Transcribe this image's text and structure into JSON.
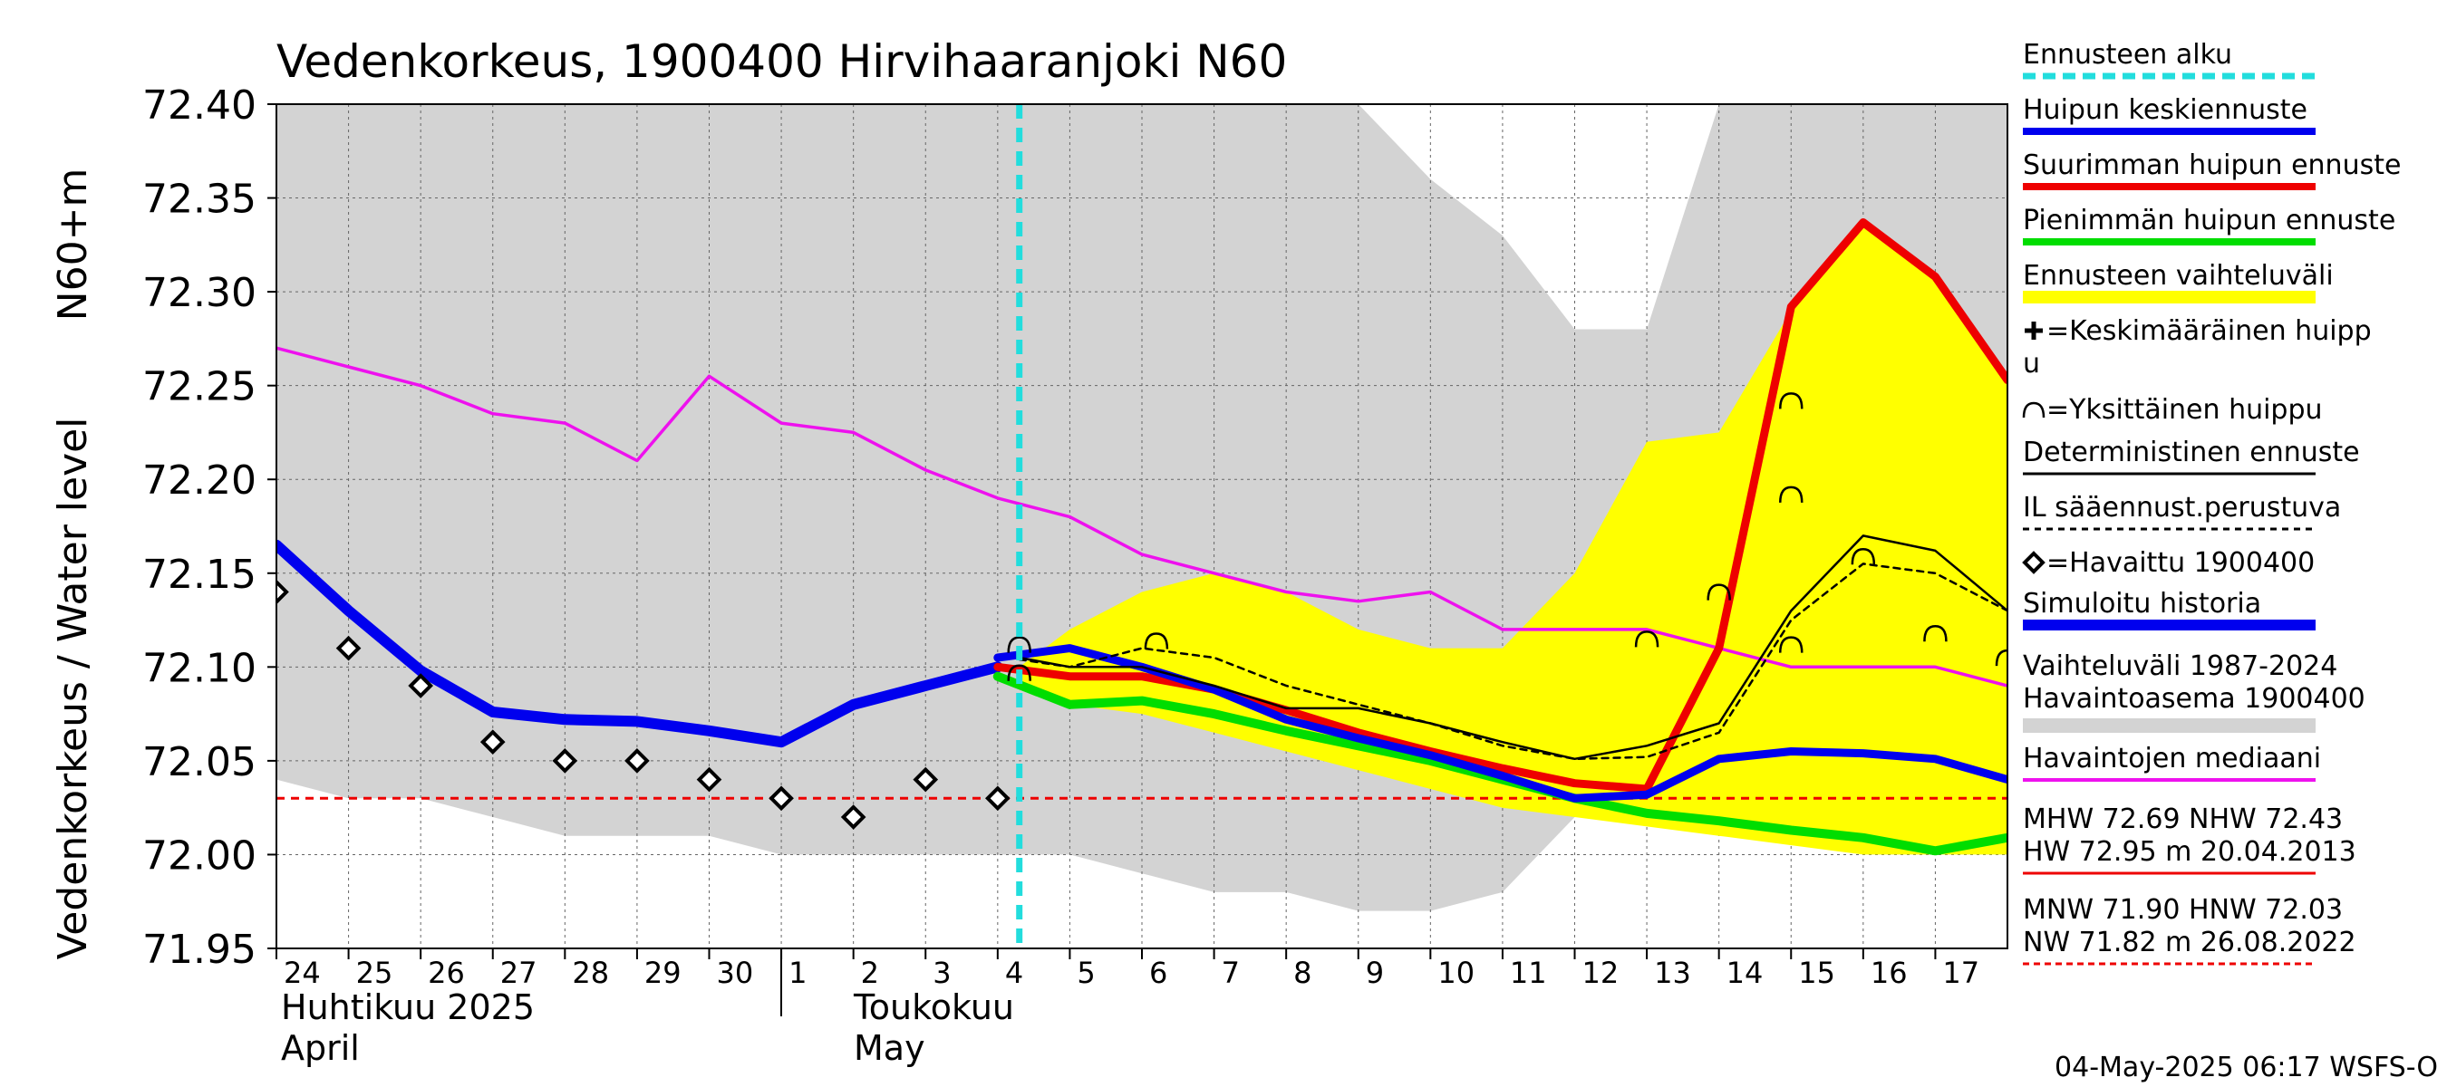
{
  "chart_data": {
    "type": "line",
    "title": "Vedenkorkeus, 1900400 Hirvihaaranjoki N60",
    "ylabel": "Vedenkorkeus / Water level   N60+m",
    "ylabel_line1": "Vedenkorkeus / Water level",
    "ylabel_line2": "N60+m",
    "ylim": [
      71.95,
      72.4
    ],
    "yticks": [
      71.95,
      72.0,
      72.05,
      72.1,
      72.15,
      72.2,
      72.25,
      72.3,
      72.35,
      72.4
    ],
    "ytick_labels": [
      "71.95",
      "72.00",
      "72.05",
      "72.10",
      "72.15",
      "72.20",
      "72.25",
      "72.30",
      "72.35",
      "72.40"
    ],
    "xlim_days": [
      0,
      24
    ],
    "day_labels": [
      "24",
      "25",
      "26",
      "27",
      "28",
      "29",
      "30",
      "1",
      "2",
      "3",
      "4",
      "5",
      "6",
      "7",
      "8",
      "9",
      "10",
      "11",
      "12",
      "13",
      "14",
      "15",
      "16",
      "17"
    ],
    "month_labels": {
      "april_fi": "Huhtikuu  2025",
      "april_en": "April",
      "may_fi": "Toukokuu",
      "may_en": "May"
    },
    "forecast_start_day": 10.3,
    "reference_level": 72.03,
    "colors": {
      "forecast_start": "#22dddd",
      "mean_peak": "#0000ee",
      "max_peak": "#ee0000",
      "min_peak": "#00dd00",
      "range": "#ffff00",
      "median": "#ee11ee",
      "deterministic": "#000000",
      "history_band": "#d3d3d3",
      "observed": "#000000",
      "reference": "#ee0000"
    },
    "history_band": {
      "upper": [
        [
          0,
          72.4
        ],
        [
          15,
          72.4
        ],
        [
          16,
          72.36
        ],
        [
          17,
          72.33
        ],
        [
          18,
          72.28
        ],
        [
          19,
          72.28
        ],
        [
          20,
          72.4
        ],
        [
          24,
          72.4
        ]
      ],
      "lower": [
        [
          0,
          72.04
        ],
        [
          1,
          72.03
        ],
        [
          2,
          72.03
        ],
        [
          3,
          72.02
        ],
        [
          4,
          72.01
        ],
        [
          5,
          72.01
        ],
        [
          6,
          72.01
        ],
        [
          7,
          72.0
        ],
        [
          11,
          72.0
        ],
        [
          12,
          71.99
        ],
        [
          13,
          71.98
        ],
        [
          14,
          71.98
        ],
        [
          15,
          71.97
        ],
        [
          16,
          71.97
        ],
        [
          17,
          71.98
        ],
        [
          18,
          72.02
        ],
        [
          24,
          72.02
        ]
      ]
    },
    "forecast_range": {
      "upper": [
        [
          10.3,
          72.1
        ],
        [
          11,
          72.12
        ],
        [
          12,
          72.14
        ],
        [
          13,
          72.15
        ],
        [
          14,
          72.14
        ],
        [
          15,
          72.12
        ],
        [
          16,
          72.11
        ],
        [
          17,
          72.11
        ],
        [
          18,
          72.15
        ],
        [
          19,
          72.22
        ],
        [
          20,
          72.225
        ],
        [
          21,
          72.29
        ],
        [
          22,
          72.335
        ],
        [
          23,
          72.31
        ],
        [
          24,
          72.255
        ]
      ],
      "lower": [
        [
          10.3,
          72.09
        ],
        [
          11,
          72.08
        ],
        [
          12,
          72.075
        ],
        [
          13,
          72.065
        ],
        [
          14,
          72.055
        ],
        [
          15,
          72.045
        ],
        [
          16,
          72.035
        ],
        [
          17,
          72.025
        ],
        [
          18,
          72.02
        ],
        [
          19,
          72.015
        ],
        [
          20,
          72.01
        ],
        [
          21,
          72.005
        ],
        [
          22,
          72.0
        ],
        [
          23,
          72.0
        ],
        [
          24,
          72.0
        ]
      ]
    },
    "series": [
      {
        "name": "Havaintojen mediaani",
        "key": "median",
        "points": [
          [
            0,
            72.27
          ],
          [
            1,
            72.26
          ],
          [
            2,
            72.25
          ],
          [
            3,
            72.235
          ],
          [
            4,
            72.23
          ],
          [
            5,
            72.21
          ],
          [
            6,
            72.255
          ],
          [
            7,
            72.23
          ],
          [
            8,
            72.225
          ],
          [
            9,
            72.205
          ],
          [
            10,
            72.19
          ],
          [
            11,
            72.18
          ],
          [
            12,
            72.16
          ],
          [
            13,
            72.15
          ],
          [
            14,
            72.14
          ],
          [
            15,
            72.135
          ],
          [
            16,
            72.14
          ],
          [
            17,
            72.12
          ],
          [
            18,
            72.12
          ],
          [
            19,
            72.12
          ],
          [
            20,
            72.11
          ],
          [
            21,
            72.1
          ],
          [
            22,
            72.1
          ],
          [
            23,
            72.1
          ],
          [
            24,
            72.09
          ]
        ]
      },
      {
        "name": "Simuloitu historia",
        "key": "simulated",
        "points": [
          [
            0,
            72.165
          ],
          [
            1,
            72.13
          ],
          [
            2,
            72.098
          ],
          [
            3,
            72.076
          ],
          [
            4,
            72.072
          ],
          [
            5,
            72.071
          ],
          [
            6,
            72.066
          ],
          [
            7,
            72.06
          ],
          [
            8,
            72.08
          ],
          [
            9,
            72.09
          ],
          [
            10,
            72.1
          ]
        ]
      },
      {
        "name": "Pienimmän huipun ennuste",
        "key": "min_peak",
        "points": [
          [
            10,
            72.095
          ],
          [
            11,
            72.08
          ],
          [
            12,
            72.082
          ],
          [
            13,
            72.075
          ],
          [
            14,
            72.066
          ],
          [
            15,
            72.058
          ],
          [
            16,
            72.05
          ],
          [
            17,
            72.04
          ],
          [
            18,
            72.03
          ],
          [
            19,
            72.022
          ],
          [
            20,
            72.018
          ],
          [
            21,
            72.013
          ],
          [
            22,
            72.009
          ],
          [
            23,
            72.002
          ],
          [
            24,
            72.009
          ]
        ]
      },
      {
        "name": "Suurimman huipun ennuste",
        "key": "max_peak",
        "points": [
          [
            10,
            72.1
          ],
          [
            11,
            72.095
          ],
          [
            12,
            72.095
          ],
          [
            13,
            72.088
          ],
          [
            14,
            72.077
          ],
          [
            15,
            72.065
          ],
          [
            16,
            72.055
          ],
          [
            17,
            72.046
          ],
          [
            18,
            72.038
          ],
          [
            19,
            72.035
          ],
          [
            20,
            72.11
          ],
          [
            21,
            72.292
          ],
          [
            22,
            72.337
          ],
          [
            23,
            72.308
          ],
          [
            24,
            72.253
          ]
        ]
      },
      {
        "name": "Huipun keskiennuste",
        "key": "mean_peak",
        "points": [
          [
            10,
            72.105
          ],
          [
            11,
            72.11
          ],
          [
            12,
            72.1
          ],
          [
            13,
            72.088
          ],
          [
            14,
            72.072
          ],
          [
            15,
            72.062
          ],
          [
            16,
            72.053
          ],
          [
            17,
            72.042
          ],
          [
            18,
            72.03
          ],
          [
            19,
            72.032
          ],
          [
            20,
            72.051
          ],
          [
            21,
            72.055
          ],
          [
            22,
            72.054
          ],
          [
            23,
            72.051
          ],
          [
            24,
            72.04
          ]
        ]
      },
      {
        "name": "Deterministinen ennuste",
        "key": "deterministic",
        "points": [
          [
            10.3,
            72.105
          ],
          [
            11,
            72.1
          ],
          [
            12,
            72.1
          ],
          [
            13,
            72.09
          ],
          [
            14,
            72.078
          ],
          [
            15,
            72.078
          ],
          [
            16,
            72.07
          ],
          [
            17,
            72.06
          ],
          [
            18,
            72.051
          ],
          [
            19,
            72.058
          ],
          [
            20,
            72.07
          ],
          [
            21,
            72.13
          ],
          [
            22,
            72.17
          ],
          [
            23,
            72.162
          ],
          [
            24,
            72.13
          ]
        ]
      },
      {
        "name": "IL sääennust.perustuva",
        "key": "il_forecast",
        "points": [
          [
            10.3,
            72.104
          ],
          [
            11,
            72.1
          ],
          [
            12,
            72.11
          ],
          [
            13,
            72.105
          ],
          [
            14,
            72.09
          ],
          [
            15,
            72.08
          ],
          [
            16,
            72.07
          ],
          [
            17,
            72.058
          ],
          [
            18,
            72.051
          ],
          [
            19,
            72.052
          ],
          [
            20,
            72.065
          ],
          [
            21,
            72.125
          ],
          [
            22,
            72.155
          ],
          [
            23,
            72.15
          ],
          [
            24,
            72.13
          ]
        ]
      }
    ],
    "observed": [
      [
        0,
        72.14
      ],
      [
        1,
        72.11
      ],
      [
        2,
        72.09
      ],
      [
        3,
        72.06
      ],
      [
        4,
        72.05
      ],
      [
        5,
        72.05
      ],
      [
        6,
        72.04
      ],
      [
        7,
        72.03
      ],
      [
        8,
        72.02
      ],
      [
        9,
        72.04
      ],
      [
        10,
        72.03
      ]
    ],
    "single_peaks": [
      [
        10.3,
        72.11
      ],
      [
        10.3,
        72.095
      ],
      [
        12.2,
        72.112
      ],
      [
        19,
        72.113
      ],
      [
        20,
        72.138
      ],
      [
        21,
        72.24
      ],
      [
        21,
        72.19
      ],
      [
        21,
        72.11
      ],
      [
        22,
        72.157
      ],
      [
        23,
        72.116
      ],
      [
        24,
        72.103
      ]
    ],
    "legend": [
      {
        "key": "forecast_start",
        "label": "Ennusteen alku"
      },
      {
        "key": "mean_peak",
        "label": "Huipun keskiennuste"
      },
      {
        "key": "max_peak",
        "label": "Suurimman huipun ennuste"
      },
      {
        "key": "min_peak",
        "label": "Pienimmän huipun ennuste"
      },
      {
        "key": "range",
        "label": "Ennusteen vaihteluväli"
      },
      {
        "key": "avg_peak",
        "label": "=Keskimääräinen huipp",
        "label2": "u"
      },
      {
        "key": "single_peak",
        "label": "=Yksittäinen huippu"
      },
      {
        "key": "deterministic",
        "label": "Deterministinen ennuste"
      },
      {
        "key": "il_forecast",
        "label": "IL sääennust.perustuva"
      },
      {
        "key": "observed",
        "label": "=Havaittu 1900400"
      },
      {
        "key": "simulated",
        "label": "Simuloitu historia"
      },
      {
        "key": "history_band",
        "label": "Vaihteluväli 1987-2024",
        "label2": " Havaintoasema 1900400"
      },
      {
        "key": "median",
        "label": "Havaintojen mediaani"
      },
      {
        "key": "mhw",
        "label": "MHW  72.69 NHW  72.43",
        "label2": "HW  72.95 m 20.04.2013"
      },
      {
        "key": "mnw",
        "label": "MNW  71.90 HNW  72.03",
        "label2": "NW  71.82 m 26.08.2022"
      }
    ],
    "timestamp": "04-May-2025 06:17 WSFS-O"
  }
}
